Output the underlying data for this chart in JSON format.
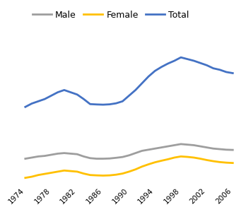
{
  "years": [
    1974,
    1975,
    1976,
    1977,
    1978,
    1979,
    1980,
    1981,
    1982,
    1983,
    1984,
    1985,
    1986,
    1987,
    1988,
    1989,
    1990,
    1991,
    1992,
    1993,
    1994,
    1995,
    1996,
    1997,
    1998,
    1999,
    2000,
    2001,
    2002,
    2003,
    2004,
    2005,
    2006
  ],
  "male": [
    590,
    600,
    610,
    615,
    625,
    635,
    640,
    635,
    630,
    610,
    595,
    590,
    590,
    592,
    598,
    605,
    620,
    640,
    660,
    670,
    680,
    690,
    700,
    710,
    720,
    715,
    710,
    700,
    690,
    680,
    675,
    670,
    668
  ],
  "female": [
    420,
    430,
    445,
    455,
    465,
    475,
    485,
    480,
    475,
    458,
    445,
    442,
    440,
    442,
    448,
    458,
    475,
    495,
    520,
    540,
    558,
    572,
    585,
    600,
    610,
    606,
    600,
    590,
    578,
    568,
    560,
    555,
    552
  ],
  "total": [
    1050,
    1080,
    1100,
    1120,
    1150,
    1180,
    1200,
    1180,
    1160,
    1120,
    1075,
    1072,
    1070,
    1073,
    1082,
    1100,
    1150,
    1200,
    1260,
    1320,
    1370,
    1405,
    1435,
    1460,
    1490,
    1475,
    1460,
    1440,
    1420,
    1393,
    1380,
    1360,
    1350
  ],
  "male_color": "#9e9e9e",
  "female_color": "#ffc000",
  "total_color": "#4472c4",
  "line_width": 2.0,
  "legend_labels": [
    "Male",
    "Female",
    "Total"
  ],
  "bg_color": "#ffffff",
  "grid_color": "#d3d3d3",
  "tick_years": [
    1974,
    1978,
    1982,
    1986,
    1990,
    1994,
    1998,
    2002,
    2006
  ],
  "xlim": [
    1973.5,
    2007
  ],
  "ylim": [
    350,
    1600
  ]
}
